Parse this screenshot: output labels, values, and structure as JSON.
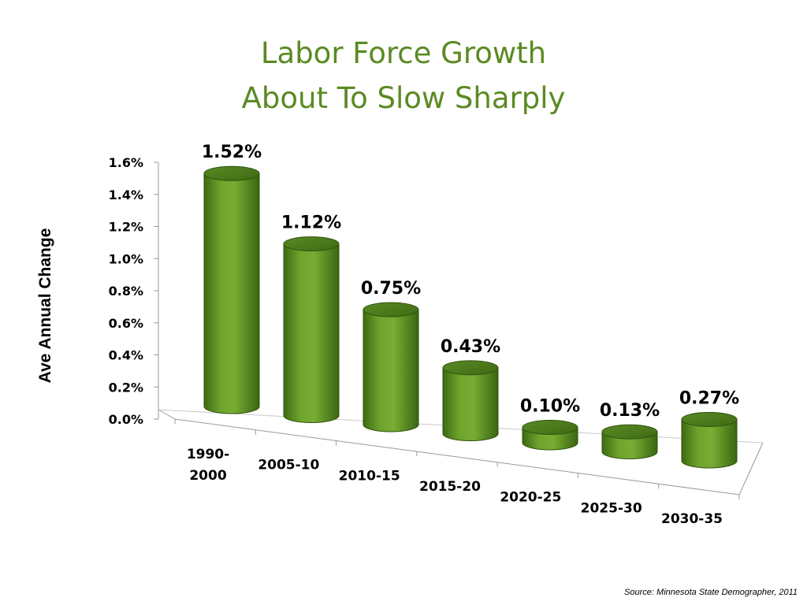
{
  "slide": {
    "title_line1": "Labor Force Growth",
    "title_line2": "About To Slow Sharply",
    "source": "Source:  Minnesota State Demographer, 2011",
    "title_color": "#5b8a23"
  },
  "chart_data": {
    "type": "bar",
    "style": "3d-cylinder",
    "title": "Labor Force Growth About To Slow Sharply",
    "xlabel": "",
    "ylabel": "Ave Annual Change",
    "ylim": [
      0.0,
      1.6
    ],
    "yticks": [
      "0.0%",
      "0.2%",
      "0.4%",
      "0.6%",
      "0.8%",
      "1.0%",
      "1.2%",
      "1.4%",
      "1.6%"
    ],
    "categories": [
      [
        "1990-",
        "2000"
      ],
      [
        "2005-10"
      ],
      [
        "2010-15"
      ],
      [
        "2015-20"
      ],
      [
        "2020-25"
      ],
      [
        "2025-30"
      ],
      [
        "2030-35"
      ]
    ],
    "values": [
      1.52,
      1.12,
      0.75,
      0.43,
      0.1,
      0.13,
      0.27
    ],
    "data_labels": [
      "1.52%",
      "1.12%",
      "0.75%",
      "0.43%",
      "0.10%",
      "0.13%",
      "0.27%"
    ],
    "value_unit": "%",
    "grid": false,
    "legend": "none",
    "colors": {
      "bar": "#6a9e2a",
      "bar_dark": "#3f6d12",
      "bar_top": "#4d7d1c"
    }
  }
}
